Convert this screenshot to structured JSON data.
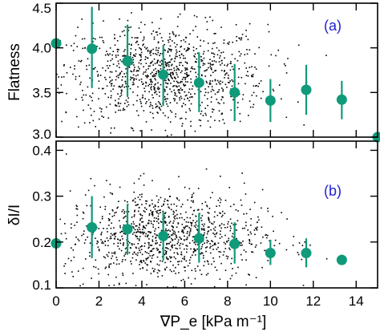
{
  "chart_data": [
    {
      "type": "scatter",
      "panel_label": "(a)",
      "ylabel": "Flatness",
      "xlim": [
        0,
        15
      ],
      "ylim": [
        3.0,
        4.5
      ],
      "yticks": [
        3.0,
        3.5,
        4.0,
        4.5
      ],
      "yticklabels": [
        "3.0",
        "3.5",
        "4.0",
        "4.5"
      ],
      "marker_color": "#0f9a7a",
      "point_color": "#000000",
      "binned": {
        "x": [
          0,
          1.67,
          3.33,
          5.0,
          6.67,
          8.33,
          10.0,
          11.67,
          13.33,
          15.0
        ],
        "y": [
          4.05,
          3.99,
          3.85,
          3.7,
          3.61,
          3.5,
          3.41,
          3.53,
          3.42,
          3.0
        ],
        "err_low": [
          3.99,
          3.55,
          3.45,
          3.35,
          3.28,
          3.18,
          3.17,
          3.25,
          3.2,
          3.0
        ],
        "err_high": [
          4.05,
          4.46,
          4.26,
          4.03,
          3.95,
          3.82,
          3.65,
          3.81,
          3.63,
          3.0
        ]
      },
      "scatter_cloud": {
        "x_center": 5.0,
        "x_spread": 2.4,
        "y_center": 3.7,
        "y_spread": 0.28,
        "count": 1100
      }
    },
    {
      "type": "scatter",
      "panel_label": "(b)",
      "ylabel": "δI/I",
      "xlabel": "∇P_e [kPa m⁻¹]",
      "xlim": [
        0,
        15
      ],
      "ylim": [
        0.1,
        0.42
      ],
      "xticks": [
        0,
        2,
        4,
        6,
        8,
        10,
        12,
        14
      ],
      "xticklabels": [
        "0",
        "2",
        "4",
        "6",
        "8",
        "10",
        "12",
        "14"
      ],
      "yticks": [
        0.1,
        0.2,
        0.3,
        0.4
      ],
      "yticklabels": [
        "0.1",
        "0.2",
        "0.3",
        "0.4"
      ],
      "marker_color": "#0f9a7a",
      "point_color": "#000000",
      "binned": {
        "x": [
          0,
          1.67,
          3.33,
          5.0,
          6.67,
          8.33,
          10.0,
          11.67,
          13.33
        ],
        "y": [
          0.197,
          0.232,
          0.228,
          0.213,
          0.208,
          0.196,
          0.176,
          0.176,
          0.161
        ],
        "err_low": [
          0.197,
          0.165,
          0.172,
          0.16,
          0.155,
          0.153,
          0.15,
          0.145,
          0.15
        ],
        "err_high": [
          0.197,
          0.3,
          0.283,
          0.265,
          0.263,
          0.243,
          0.205,
          0.208,
          0.172
        ]
      },
      "scatter_cloud": {
        "x_center": 5.0,
        "x_spread": 2.3,
        "y_center": 0.215,
        "y_spread": 0.05,
        "count": 1100
      }
    }
  ]
}
